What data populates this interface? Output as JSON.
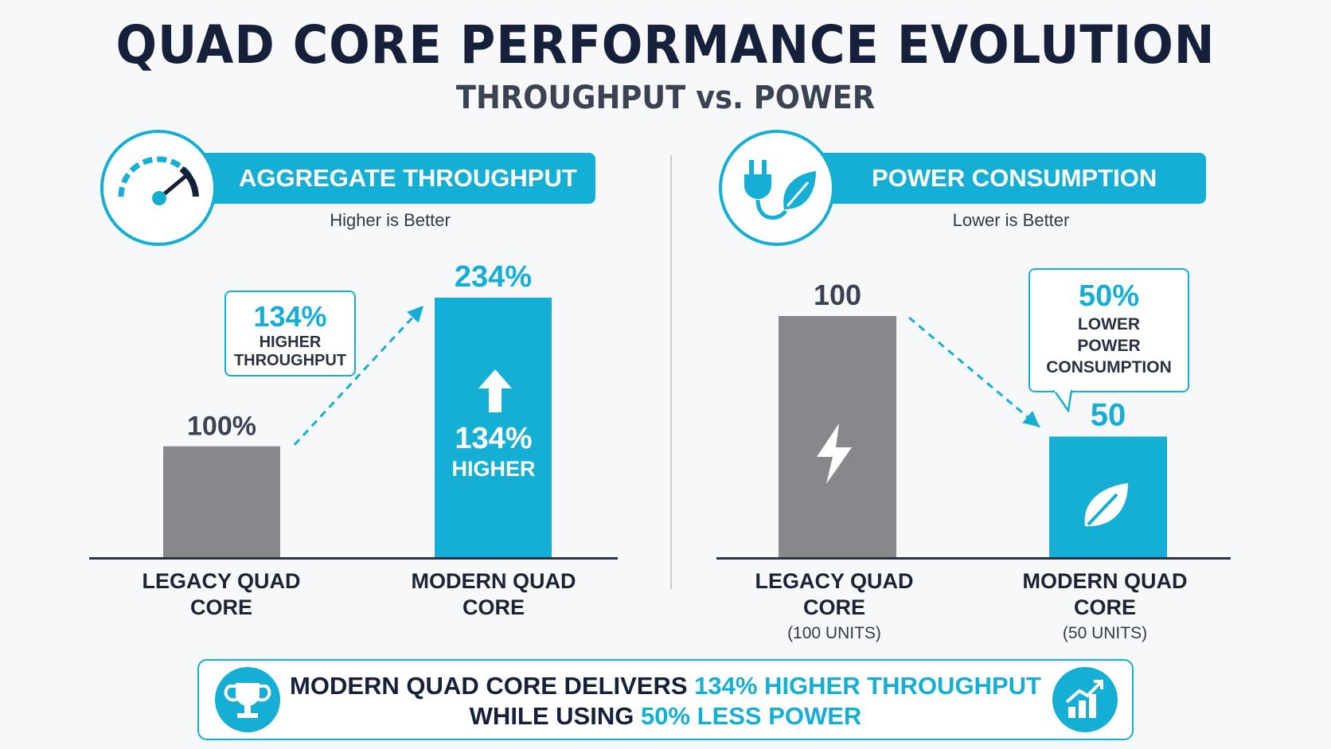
{
  "title": "QUAD CORE PERFORMANCE EVOLUTION",
  "subtitle": "THROUGHPUT vs. POWER",
  "colors": {
    "accent": "#15aed4",
    "legacy": "#86888b",
    "dark": "#17203a"
  },
  "left_panel": {
    "header": "AGGREGATE THROUGHPUT",
    "note": "Higher is Better",
    "icon": "speedometer-icon",
    "callout": {
      "value": "134%",
      "line1": "HIGHER",
      "line2": "THROUGHPUT"
    },
    "bar_inner": {
      "value": "134%",
      "label": "HIGHER",
      "icon": "arrow-up-icon"
    }
  },
  "right_panel": {
    "header": "POWER CONSUMPTION",
    "note": "Lower is Better",
    "icon": "plug-leaf-icon",
    "callout": {
      "value": "50%",
      "line1": "LOWER",
      "line2": "POWER",
      "line3": "CONSUMPTION"
    },
    "legacy_icon": "lightning-icon",
    "modern_icon": "leaf-icon"
  },
  "summary": {
    "line1_a": "MODERN QUAD CORE DELIVERS",
    "line1_b": "134% HIGHER THROUGHPUT",
    "line2_a": "WHILE USING",
    "line2_b": "50% LESS POWER",
    "left_icon": "trophy-icon",
    "right_icon": "growth-chart-icon"
  },
  "chart_data": [
    {
      "type": "bar",
      "title": "AGGREGATE THROUGHPUT",
      "subtitle": "Higher is Better",
      "categories": [
        "LEGACY QUAD CORE",
        "MODERN QUAD CORE"
      ],
      "values": [
        100,
        234
      ],
      "value_labels": [
        "100%",
        "234%"
      ],
      "units": "%",
      "ylim": [
        0,
        234
      ],
      "grid": false
    },
    {
      "type": "bar",
      "title": "POWER CONSUMPTION",
      "subtitle": "Lower is Better",
      "categories": [
        "LEGACY QUAD CORE",
        "MODERN QUAD CORE"
      ],
      "category_units": [
        "(100 UNITS)",
        "(50 UNITS)"
      ],
      "values": [
        100,
        50
      ],
      "value_labels": [
        "100",
        "50"
      ],
      "ylim": [
        0,
        100
      ],
      "grid": false
    }
  ]
}
